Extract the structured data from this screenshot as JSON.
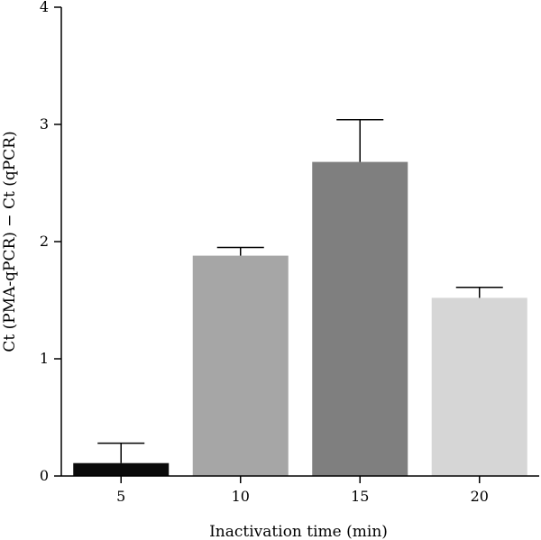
{
  "chart_data": {
    "type": "bar",
    "xlabel": "Inactivation time (min)",
    "ylabel": "Ct (PMA-qPCR) − Ct (qPCR)",
    "categories": [
      "5",
      "10",
      "15",
      "20"
    ],
    "values": [
      0.11,
      1.88,
      2.68,
      1.52
    ],
    "errors": [
      0.17,
      0.07,
      0.36,
      0.09
    ],
    "colors": [
      "#0a0a0a",
      "#a6a6a6",
      "#7f7f7f",
      "#d6d6d6"
    ],
    "ylim": [
      0,
      4
    ],
    "yticks": [
      "0",
      "1",
      "2",
      "3",
      "4"
    ],
    "grid": false
  }
}
